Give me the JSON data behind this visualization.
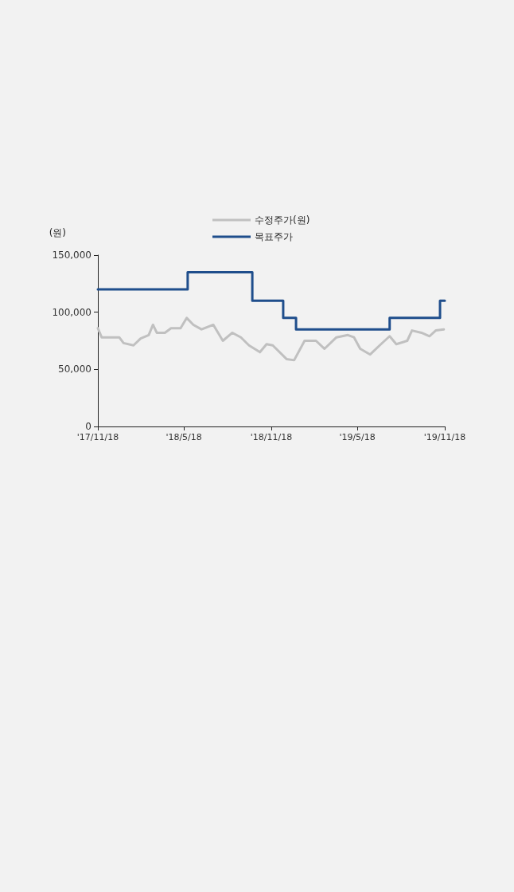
{
  "chart_data": {
    "type": "line",
    "ylabel": "(원)",
    "xlim": [
      "2017-11-18",
      "2019-11-18"
    ],
    "xticks": [
      {
        "value": "2017-11-18",
        "label": "'17/11/18"
      },
      {
        "value": "2018-05-18",
        "label": "'18/5/18"
      },
      {
        "value": "2018-11-18",
        "label": "'18/11/18"
      },
      {
        "value": "2019-05-18",
        "label": "'19/5/18"
      },
      {
        "value": "2019-11-18",
        "label": "'19/11/18"
      }
    ],
    "ylim": [
      0,
      150000
    ],
    "yticks": [
      {
        "value": 0,
        "label": "0"
      },
      {
        "value": 50000,
        "label": "50,000"
      },
      {
        "value": 100000,
        "label": "100,000"
      },
      {
        "value": 150000,
        "label": "150,000"
      }
    ],
    "grid": false,
    "legend": "top",
    "marker": "none",
    "line_style": "solid",
    "series": [
      {
        "name": "수정주가(원)",
        "type": "line",
        "color": "#c0c0c0",
        "x": [
          "2017-11-18",
          "2017-11-26",
          "2017-12-11",
          "2018-01-02",
          "2018-01-11",
          "2018-02-01",
          "2018-02-16",
          "2018-03-05",
          "2018-03-14",
          "2018-03-22",
          "2018-04-08",
          "2018-04-21",
          "2018-05-11",
          "2018-05-24",
          "2018-06-07",
          "2018-06-24",
          "2018-07-19",
          "2018-08-08",
          "2018-08-28",
          "2018-09-15",
          "2018-10-02",
          "2018-10-25",
          "2018-11-08",
          "2018-11-21",
          "2018-12-20",
          "2019-01-05",
          "2019-01-27",
          "2019-02-20",
          "2019-03-10",
          "2019-04-04",
          "2019-04-28",
          "2019-05-11",
          "2019-05-24",
          "2019-06-14",
          "2019-07-04",
          "2019-07-25",
          "2019-08-08",
          "2019-08-31",
          "2019-09-10",
          "2019-09-30",
          "2019-10-17",
          "2019-10-30",
          "2019-11-16"
        ],
        "values": [
          86000,
          78000,
          78000,
          78000,
          73000,
          71000,
          77000,
          80000,
          89000,
          82000,
          82000,
          86000,
          86000,
          95000,
          89000,
          85000,
          89000,
          75000,
          82000,
          78000,
          71000,
          65000,
          72000,
          71000,
          59000,
          58000,
          75000,
          75000,
          68000,
          78000,
          80000,
          78000,
          68000,
          63000,
          71000,
          79000,
          72000,
          75000,
          84000,
          82000,
          79000,
          84000,
          85000
        ]
      },
      {
        "name": "목표주가",
        "type": "step",
        "color": "#1f4e8c",
        "x": [
          "2017-11-18",
          "2018-05-26",
          "2018-10-09",
          "2018-12-13",
          "2019-01-09",
          "2019-07-25",
          "2019-11-08",
          "2019-11-18"
        ],
        "values": [
          120000,
          135000,
          110000,
          95000,
          85000,
          95000,
          110000,
          110000
        ]
      }
    ]
  }
}
